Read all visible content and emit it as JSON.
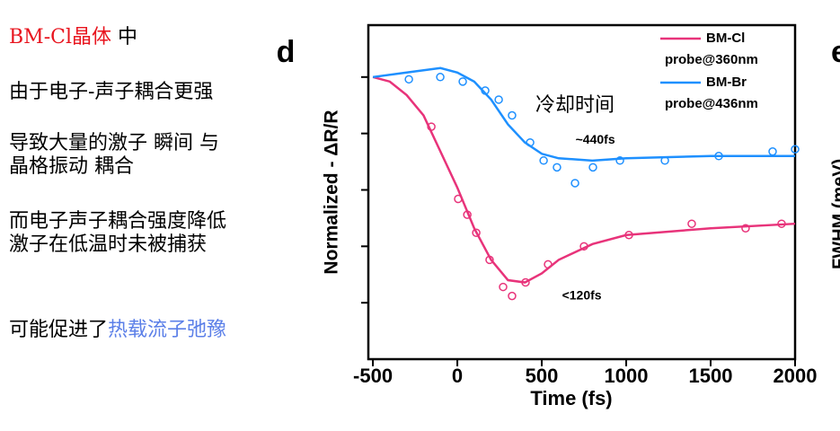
{
  "notes": [
    [
      {
        "text": "BM-Cl晶体",
        "color": "#e8141e"
      },
      {
        "text": " 中"
      }
    ],
    [
      {
        "text": "由于电子-声子耦合更强"
      }
    ],
    [
      {
        "text": "导致大量的激子 瞬间 与"
      },
      {
        "text": "晶格振动 耦合"
      }
    ],
    [
      {
        "text": "而电子声子耦合强度降低"
      },
      {
        "text": "激子在低温时未被捕获"
      }
    ],
    [
      {
        "text": "可能促进了"
      },
      {
        "text": "热载流子弛豫",
        "color": "#5b7fe8"
      }
    ]
  ],
  "chart_data": {
    "type": "line",
    "panel_label": "d",
    "next_panel_label": "e",
    "next_panel_ylabel": "FWHM (meV)",
    "xlabel": "Time (fs)",
    "ylabel": "Normalized - ΔR/R",
    "annotations": [
      {
        "text": "~440fs",
        "x": 700,
        "y": -0.28
      },
      {
        "text": "<120fs",
        "x": 620,
        "y": -0.97
      }
    ],
    "callout": {
      "text": "冷却时间",
      "color": "#5b7fe8"
    },
    "xlim": [
      -527,
      2000
    ],
    "xticks": [
      -500,
      0,
      500,
      1000,
      1500,
      2000
    ],
    "ylim": [
      -1.25,
      0.23
    ],
    "yticks": [
      0,
      -0.25,
      -0.5,
      -0.75,
      -1
    ],
    "series": [
      {
        "name": "BM-Cl",
        "probe": "probe@360nm",
        "color": "#e8337a",
        "x": [
          -500,
          -400,
          -300,
          -200,
          -100,
          0,
          100,
          200,
          300,
          400,
          500,
          600,
          800,
          1000,
          1500,
          2000
        ],
        "values": [
          0,
          -0.02,
          -0.08,
          -0.17,
          -0.33,
          -0.49,
          -0.67,
          -0.81,
          -0.9,
          -0.91,
          -0.87,
          -0.81,
          -0.74,
          -0.7,
          -0.67,
          -0.65
        ],
        "points_x": [
          -154,
          5,
          59,
          112,
          191,
          271,
          324,
          404,
          537,
          750,
          1016,
          1388,
          1707,
          1920
        ],
        "points_y": [
          -0.22,
          -0.54,
          -0.61,
          -0.69,
          -0.81,
          -0.93,
          -0.97,
          -0.91,
          -0.83,
          -0.75,
          -0.7,
          -0.65,
          -0.67,
          -0.65
        ]
      },
      {
        "name": "BM-Br",
        "probe": "probe@436nm",
        "color": "#1e90ff",
        "x": [
          -500,
          -300,
          -100,
          0,
          100,
          200,
          300,
          400,
          500,
          600,
          800,
          1000,
          1500,
          2000
        ],
        "values": [
          0,
          0.02,
          0.04,
          0.02,
          -0.02,
          -0.1,
          -0.21,
          -0.29,
          -0.34,
          -0.36,
          -0.37,
          -0.36,
          -0.35,
          -0.35
        ],
        "points_x": [
          -287,
          -101,
          32,
          165,
          245,
          324,
          431,
          511,
          590,
          697,
          803,
          963,
          1229,
          1548,
          1867,
          2000
        ],
        "points_y": [
          -0.01,
          0,
          -0.02,
          -0.06,
          -0.1,
          -0.17,
          -0.29,
          -0.37,
          -0.4,
          -0.47,
          -0.4,
          -0.37,
          -0.37,
          -0.35,
          -0.33,
          -0.32
        ]
      }
    ]
  }
}
